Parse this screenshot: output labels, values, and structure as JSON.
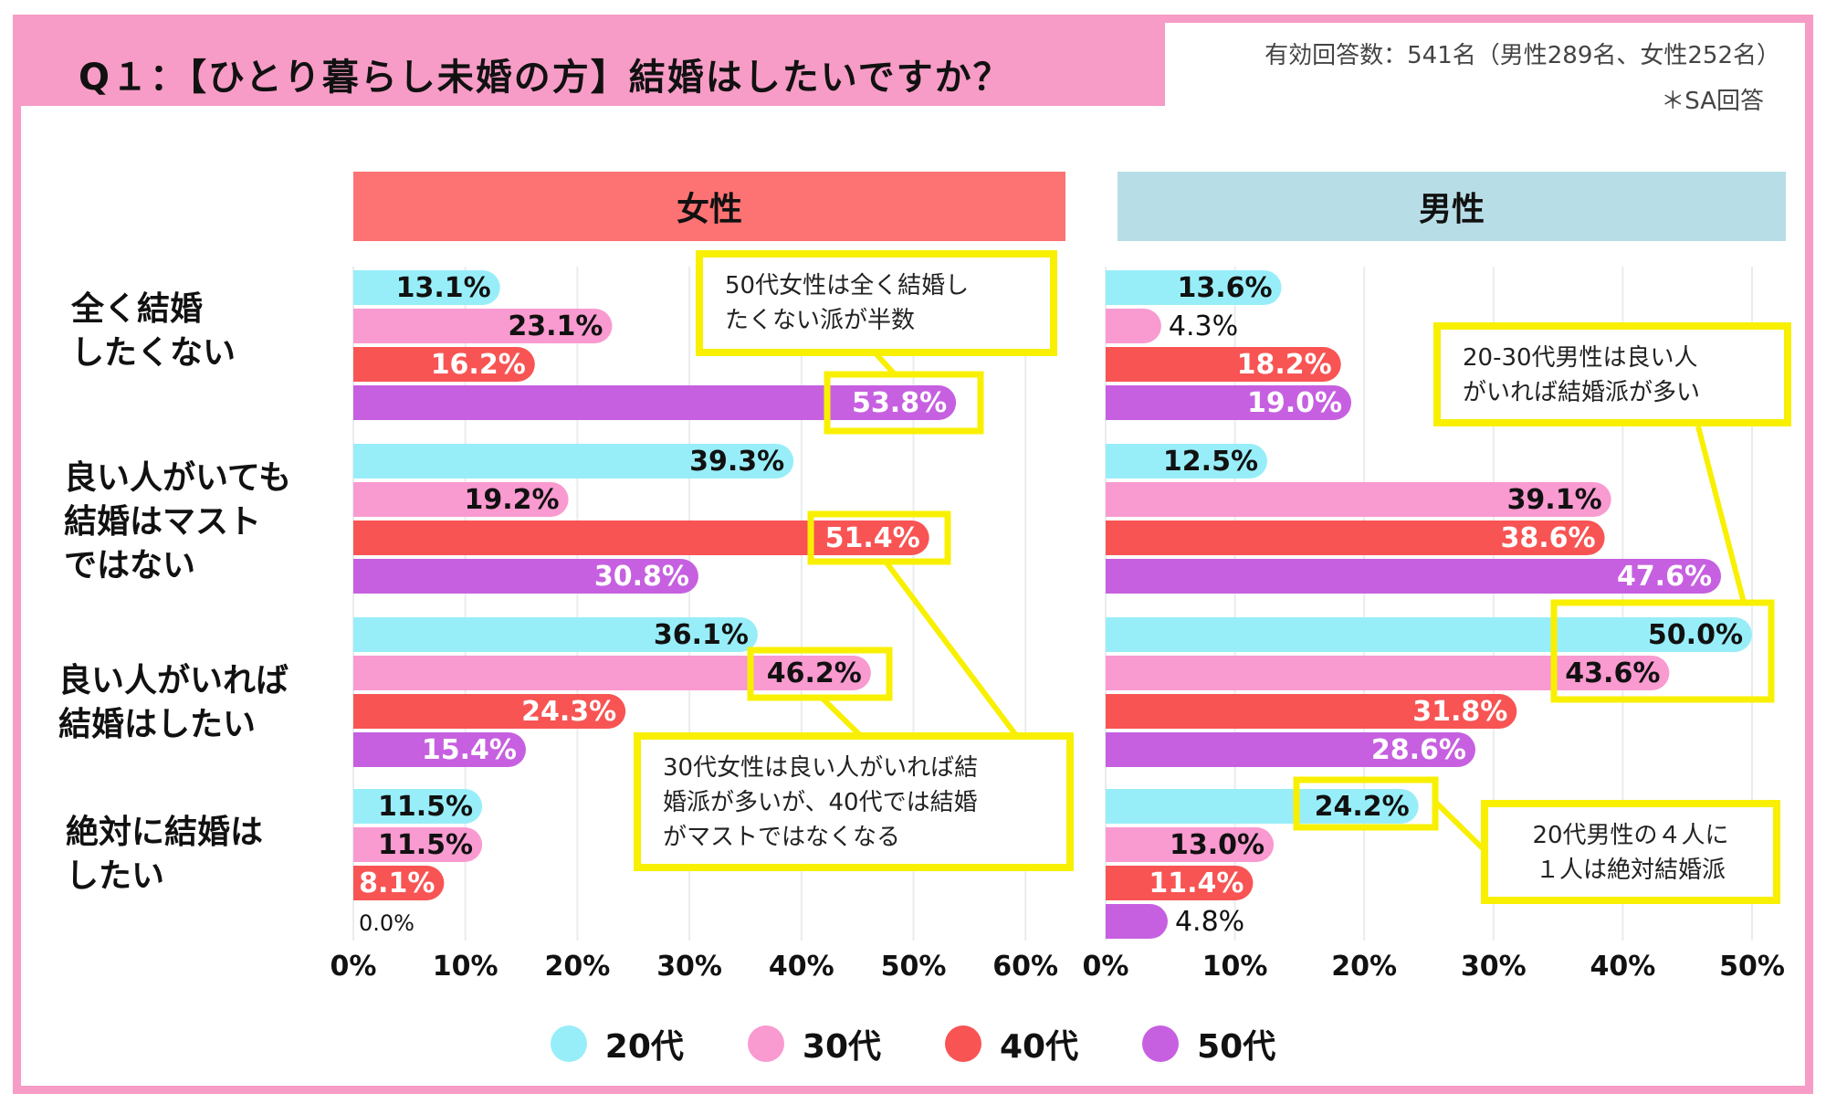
{
  "header": {
    "title": "Q１：【ひとり暮らし未婚の方】結婚はしたいですか？",
    "respondents": "有効回答数：541名（男性289名、女性252名）",
    "answer_type": "＊SA回答"
  },
  "colors": {
    "age20": "#98eef8",
    "age30": "#f99ad0",
    "age40": "#f85454",
    "age50": "#c660e0",
    "female_header": "#fd7272",
    "male_header": "#b7dde6",
    "frame": "#f79cc6",
    "callout_border": "#f8f000"
  },
  "chart_data": {
    "type": "bar",
    "orientation": "horizontal",
    "title": "Q１：【ひとり暮らし未婚の方】結婚はしたいですか？",
    "categories": [
      "全く結婚\nしたくない",
      "良い人がいても\n結婚はマスト\nではない",
      "良い人がいれば\n結婚はしたい",
      "絶対に結婚は\nしたい"
    ],
    "legend": [
      "20代",
      "30代",
      "40代",
      "50代"
    ],
    "legend_position": "bottom",
    "grid": true,
    "panels": [
      {
        "name": "女性",
        "xlim": [
          0,
          60
        ],
        "ticks": [
          "0%",
          "10%",
          "20%",
          "30%",
          "40%",
          "50%",
          "60%"
        ],
        "tick_values": [
          0,
          10,
          20,
          30,
          40,
          50,
          60
        ],
        "series": [
          {
            "name": "20代",
            "values": [
              13.1,
              39.3,
              36.1,
              11.5
            ]
          },
          {
            "name": "30代",
            "values": [
              23.1,
              19.2,
              46.2,
              11.5
            ]
          },
          {
            "name": "40代",
            "values": [
              16.2,
              51.4,
              24.3,
              8.1
            ]
          },
          {
            "name": "50代",
            "values": [
              53.8,
              30.8,
              15.4,
              0.0
            ]
          }
        ]
      },
      {
        "name": "男性",
        "xlim": [
          0,
          50
        ],
        "ticks": [
          "0%",
          "10%",
          "20%",
          "30%",
          "40%",
          "50%"
        ],
        "tick_values": [
          0,
          10,
          20,
          30,
          40,
          50
        ],
        "series": [
          {
            "name": "20代",
            "values": [
              13.6,
              12.5,
              50.0,
              24.2
            ]
          },
          {
            "name": "30代",
            "values": [
              4.3,
              39.1,
              43.6,
              13.0
            ]
          },
          {
            "name": "40代",
            "values": [
              18.2,
              38.6,
              31.8,
              11.4
            ]
          },
          {
            "name": "50代",
            "values": [
              19.0,
              47.6,
              28.6,
              4.8
            ]
          }
        ]
      }
    ],
    "annotations": [
      {
        "panel": "女性",
        "text": "50代女性は全く結婚し\nたくない派が半数",
        "highlights": [
          {
            "category": 0,
            "series": 3
          }
        ]
      },
      {
        "panel": "女性",
        "text": "30代女性は良い人がいれば結\n婚派が多いが、40代では結婚\nがマストではなくなる",
        "highlights": [
          {
            "category": 1,
            "series": 2
          },
          {
            "category": 2,
            "series": 1
          }
        ]
      },
      {
        "panel": "男性",
        "text": "20-30代男性は良い人\nがいれば結婚派が多い",
        "highlights": [
          {
            "category": 2,
            "series": 0
          },
          {
            "category": 2,
            "series": 1
          }
        ]
      },
      {
        "panel": "男性",
        "text": "20代男性の４人に\n１人は絶対結婚派",
        "highlights": [
          {
            "category": 3,
            "series": 0
          }
        ]
      }
    ]
  }
}
